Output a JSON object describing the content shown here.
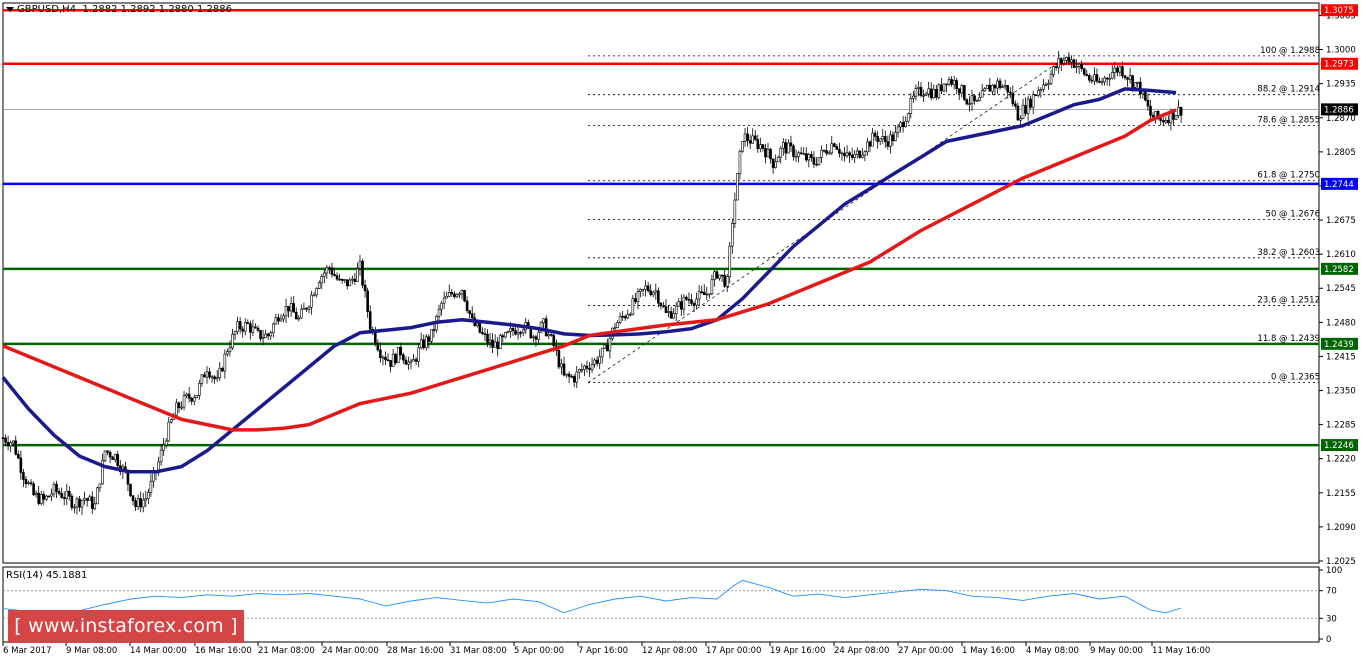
{
  "header": {
    "symbol_timeframe": "GBPUSD,H4",
    "ohlc": "1.2882 1.2892 1.2880 1.2886"
  },
  "rsi_header": "RSI(14) 45.1881",
  "watermark": "[ www.instaforex.com ]",
  "chart_data": {
    "type": "candlestick",
    "symbol": "GBPUSD",
    "timeframe": "H4",
    "ylim": [
      1.2025,
      1.3085
    ],
    "y_ticks": [
      "1.3065",
      "1.3000",
      "1.2935",
      "1.2870",
      "1.2805",
      "1.2740",
      "1.2675",
      "1.2610",
      "1.2545",
      "1.2480",
      "1.2415",
      "1.2350",
      "1.2285",
      "1.2220",
      "1.2155",
      "1.2090",
      "1.2025"
    ],
    "x_ticks": [
      "6 Mar 2017",
      "9 Mar 08:00",
      "14 Mar 00:00",
      "16 Mar 16:00",
      "21 Mar 08:00",
      "24 Mar 00:00",
      "28 Mar 16:00",
      "31 Mar 08:00",
      "5 Apr 00:00",
      "7 Apr 16:00",
      "12 Apr 08:00",
      "17 Apr 00:00",
      "19 Apr 16:00",
      "24 Apr 08:00",
      "27 Apr 00:00",
      "1 May 16:00",
      "4 May 08:00",
      "9 May 00:00",
      "11 May 16:00"
    ],
    "current_price": 1.2886,
    "horizontal_levels": [
      {
        "value": 1.3075,
        "label": "1.3075",
        "color": "#ff0000"
      },
      {
        "value": 1.2973,
        "label": "1.2973",
        "color": "#ff0000"
      },
      {
        "value": 1.2744,
        "label": "1.2744",
        "color": "#0000ff"
      },
      {
        "value": 1.2582,
        "label": "1.2582",
        "color": "#006400"
      },
      {
        "value": 1.2439,
        "label": "1.2439",
        "color": "#006400"
      },
      {
        "value": 1.2246,
        "label": "1.2246",
        "color": "#006400"
      }
    ],
    "fibonacci": [
      {
        "label": "100 @ 1.2988",
        "value": 1.2988
      },
      {
        "label": "88.2 @ 1.2914",
        "value": 1.2914
      },
      {
        "label": "78.6 @ 1.2855",
        "value": 1.2855
      },
      {
        "label": "61.8 @ 1.2750",
        "value": 1.275
      },
      {
        "label": "50 @ 1.2676",
        "value": 1.2676
      },
      {
        "label": "38.2 @ 1.2603",
        "value": 1.2603
      },
      {
        "label": "23.6 @ 1.2512",
        "value": 1.2512
      },
      {
        "label": "11.8 @ 1.2439",
        "value": 1.2439
      },
      {
        "label": "0 @ 1.2365",
        "value": 1.2365
      }
    ],
    "close_path": [
      [
        0,
        1.226
      ],
      [
        4,
        1.225
      ],
      [
        8,
        1.219
      ],
      [
        12,
        1.215
      ],
      [
        16,
        1.214
      ],
      [
        20,
        1.216
      ],
      [
        24,
        1.215
      ],
      [
        28,
        1.2135
      ],
      [
        32,
        1.2145
      ],
      [
        36,
        1.213
      ],
      [
        40,
        1.2235
      ],
      [
        44,
        1.2225
      ],
      [
        48,
        1.219
      ],
      [
        52,
        1.213
      ],
      [
        56,
        1.2145
      ],
      [
        60,
        1.2195
      ],
      [
        64,
        1.2265
      ],
      [
        68,
        1.2315
      ],
      [
        72,
        1.2335
      ],
      [
        76,
        1.2345
      ],
      [
        80,
        1.2395
      ],
      [
        84,
        1.2365
      ],
      [
        88,
        1.243
      ],
      [
        92,
        1.247
      ],
      [
        96,
        1.2475
      ],
      [
        100,
        1.2455
      ],
      [
        104,
        1.2455
      ],
      [
        108,
        1.2495
      ],
      [
        112,
        1.251
      ],
      [
        116,
        1.2485
      ],
      [
        120,
        1.252
      ],
      [
        124,
        1.2565
      ],
      [
        128,
        1.2585
      ],
      [
        132,
        1.2555
      ],
      [
        136,
        1.2555
      ],
      [
        140,
        1.2585
      ],
      [
        144,
        1.2475
      ],
      [
        148,
        1.2425
      ],
      [
        152,
        1.2405
      ],
      [
        156,
        1.2425
      ],
      [
        160,
        1.2395
      ],
      [
        164,
        1.2435
      ],
      [
        168,
        1.2455
      ],
      [
        172,
        1.2515
      ],
      [
        176,
        1.2535
      ],
      [
        180,
        1.2545
      ],
      [
        184,
        1.248
      ],
      [
        188,
        1.2455
      ],
      [
        192,
        1.2435
      ],
      [
        196,
        1.2445
      ],
      [
        200,
        1.2465
      ],
      [
        204,
        1.2475
      ],
      [
        208,
        1.2455
      ],
      [
        212,
        1.2475
      ],
      [
        216,
        1.2435
      ],
      [
        220,
        1.2375
      ],
      [
        224,
        1.2375
      ],
      [
        228,
        1.2395
      ],
      [
        232,
        1.2405
      ],
      [
        236,
        1.2425
      ],
      [
        240,
        1.2475
      ],
      [
        244,
        1.2495
      ],
      [
        248,
        1.252
      ],
      [
        252,
        1.2545
      ],
      [
        256,
        1.254
      ],
      [
        260,
        1.2495
      ],
      [
        264,
        1.2505
      ],
      [
        268,
        1.2525
      ],
      [
        272,
        1.2525
      ],
      [
        276,
        1.2535
      ],
      [
        280,
        1.2575
      ],
      [
        284,
        1.2555
      ],
      [
        286,
        1.2675
      ],
      [
        288,
        1.2755
      ],
      [
        290,
        1.2835
      ],
      [
        294,
        1.2825
      ],
      [
        298,
        1.2815
      ],
      [
        302,
        1.2785
      ],
      [
        306,
        1.2815
      ],
      [
        310,
        1.2805
      ],
      [
        314,
        1.2795
      ],
      [
        318,
        1.2785
      ],
      [
        322,
        1.2805
      ],
      [
        326,
        1.2825
      ],
      [
        330,
        1.2795
      ],
      [
        334,
        1.2795
      ],
      [
        338,
        1.2815
      ],
      [
        342,
        1.2835
      ],
      [
        346,
        1.2825
      ],
      [
        350,
        1.2835
      ],
      [
        354,
        1.2875
      ],
      [
        358,
        1.2915
      ],
      [
        362,
        1.2925
      ],
      [
        366,
        1.2915
      ],
      [
        370,
        1.2945
      ],
      [
        374,
        1.2935
      ],
      [
        378,
        1.2905
      ],
      [
        382,
        1.2895
      ],
      [
        386,
        1.2925
      ],
      [
        390,
        1.2935
      ],
      [
        394,
        1.2925
      ],
      [
        398,
        1.2875
      ],
      [
        402,
        1.2895
      ],
      [
        406,
        1.2925
      ],
      [
        410,
        1.2945
      ],
      [
        414,
        1.2975
      ],
      [
        418,
        1.2985
      ],
      [
        422,
        1.2965
      ],
      [
        426,
        1.2945
      ],
      [
        430,
        1.2935
      ],
      [
        434,
        1.2955
      ],
      [
        438,
        1.2965
      ],
      [
        442,
        1.2945
      ],
      [
        446,
        1.2925
      ],
      [
        450,
        1.2875
      ],
      [
        454,
        1.2865
      ],
      [
        458,
        1.2875
      ],
      [
        462,
        1.2886
      ]
    ],
    "series": [
      {
        "name": "",
        "color": "#1a1a8c",
        "points": [
          [
            0,
            1.2375
          ],
          [
            10,
            1.2315
          ],
          [
            20,
            1.2265
          ],
          [
            30,
            1.2225
          ],
          [
            40,
            1.2205
          ],
          [
            50,
            1.2195
          ],
          [
            60,
            1.2195
          ],
          [
            70,
            1.2205
          ],
          [
            80,
            1.2235
          ],
          [
            90,
            1.2275
          ],
          [
            100,
            1.2315
          ],
          [
            110,
            1.2355
          ],
          [
            120,
            1.2395
          ],
          [
            130,
            1.2435
          ],
          [
            140,
            1.246
          ],
          [
            150,
            1.2465
          ],
          [
            160,
            1.247
          ],
          [
            170,
            1.248
          ],
          [
            180,
            1.2485
          ],
          [
            190,
            1.248
          ],
          [
            200,
            1.2475
          ],
          [
            210,
            1.2468
          ],
          [
            220,
            1.2458
          ],
          [
            230,
            1.2455
          ],
          [
            240,
            1.2456
          ],
          [
            250,
            1.2458
          ],
          [
            260,
            1.2462
          ],
          [
            270,
            1.2468
          ],
          [
            280,
            1.2485
          ],
          [
            290,
            1.2525
          ],
          [
            300,
            1.2575
          ],
          [
            310,
            1.2625
          ],
          [
            320,
            1.2665
          ],
          [
            330,
            1.2705
          ],
          [
            340,
            1.2735
          ],
          [
            350,
            1.2765
          ],
          [
            360,
            1.2795
          ],
          [
            370,
            1.2825
          ],
          [
            380,
            1.2835
          ],
          [
            390,
            1.2845
          ],
          [
            400,
            1.2855
          ],
          [
            410,
            1.2875
          ],
          [
            420,
            1.2895
          ],
          [
            430,
            1.2905
          ],
          [
            440,
            1.2925
          ],
          [
            450,
            1.2922
          ],
          [
            460,
            1.2918
          ]
        ]
      },
      {
        "name": "",
        "color": "#e31818",
        "points": [
          [
            0,
            1.2435
          ],
          [
            20,
            1.2395
          ],
          [
            40,
            1.2355
          ],
          [
            60,
            1.2315
          ],
          [
            70,
            1.2295
          ],
          [
            80,
            1.2285
          ],
          [
            90,
            1.2275
          ],
          [
            100,
            1.2275
          ],
          [
            110,
            1.2278
          ],
          [
            120,
            1.2285
          ],
          [
            130,
            1.2305
          ],
          [
            140,
            1.2325
          ],
          [
            160,
            1.2345
          ],
          [
            180,
            1.2375
          ],
          [
            200,
            1.2405
          ],
          [
            220,
            1.2435
          ],
          [
            230,
            1.2455
          ],
          [
            240,
            1.2462
          ],
          [
            260,
            1.2475
          ],
          [
            280,
            1.2485
          ],
          [
            300,
            1.2515
          ],
          [
            320,
            1.2555
          ],
          [
            340,
            1.2595
          ],
          [
            360,
            1.2655
          ],
          [
            380,
            1.2705
          ],
          [
            400,
            1.2755
          ],
          [
            420,
            1.2795
          ],
          [
            440,
            1.2835
          ],
          [
            450,
            1.2865
          ],
          [
            460,
            1.2885
          ]
        ]
      }
    ],
    "rsi": {
      "label": "RSI(14) 45.1881",
      "value": 45.1881,
      "ylim": [
        0,
        100
      ],
      "y_ticks": [
        "100",
        "70",
        "30",
        "0"
      ],
      "path": [
        [
          0,
          44
        ],
        [
          10,
          40
        ],
        [
          20,
          38
        ],
        [
          30,
          41
        ],
        [
          40,
          50
        ],
        [
          50,
          58
        ],
        [
          60,
          62
        ],
        [
          70,
          60
        ],
        [
          80,
          64
        ],
        [
          90,
          62
        ],
        [
          100,
          66
        ],
        [
          110,
          64
        ],
        [
          120,
          66
        ],
        [
          130,
          62
        ],
        [
          140,
          58
        ],
        [
          150,
          48
        ],
        [
          160,
          55
        ],
        [
          170,
          60
        ],
        [
          180,
          56
        ],
        [
          190,
          52
        ],
        [
          200,
          58
        ],
        [
          210,
          54
        ],
        [
          220,
          38
        ],
        [
          230,
          50
        ],
        [
          240,
          58
        ],
        [
          250,
          62
        ],
        [
          260,
          55
        ],
        [
          270,
          60
        ],
        [
          280,
          58
        ],
        [
          286,
          76
        ],
        [
          290,
          85
        ],
        [
          300,
          75
        ],
        [
          310,
          62
        ],
        [
          320,
          65
        ],
        [
          330,
          60
        ],
        [
          340,
          64
        ],
        [
          350,
          68
        ],
        [
          360,
          72
        ],
        [
          370,
          70
        ],
        [
          380,
          62
        ],
        [
          390,
          60
        ],
        [
          400,
          56
        ],
        [
          410,
          62
        ],
        [
          420,
          66
        ],
        [
          430,
          58
        ],
        [
          440,
          62
        ],
        [
          450,
          42
        ],
        [
          456,
          38
        ],
        [
          462,
          45
        ]
      ]
    },
    "colors": {
      "ma_blue": "#1a1a8c",
      "ma_red": "#e31818",
      "resistance": "#ff0000",
      "pivot_blue": "#0000ff",
      "support_green": "#006400",
      "price_line": "#8c8ca0",
      "rsi_line": "#1e90ff",
      "candle": "#000000"
    }
  }
}
